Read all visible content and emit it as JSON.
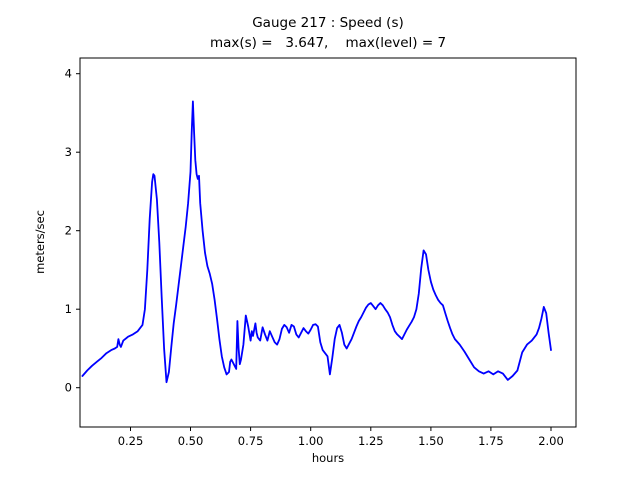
{
  "figure": {
    "background": "#ffffff"
  },
  "chart_data": {
    "type": "line",
    "title": "Gauge 217 : Speed (s)",
    "subtitle": "max(s) =   3.647,    max(level) = 7",
    "xlabel": "hours",
    "ylabel": "meters/sec",
    "max_s": 3.647,
    "max_level": 7,
    "line_color": "#0000ff",
    "axis_color": "#000000",
    "grid": false,
    "legend": "none",
    "xlim": [
      0.04,
      2.104
    ],
    "ylim": [
      -0.5,
      4.2
    ],
    "xticks": [
      0.25,
      0.5,
      0.75,
      1.0,
      1.25,
      1.5,
      1.75,
      2.0
    ],
    "xtick_labels": [
      "0.25",
      "0.50",
      "0.75",
      "1.00",
      "1.25",
      "1.50",
      "1.75",
      "2.00"
    ],
    "yticks": [
      0,
      1,
      2,
      3,
      4
    ],
    "ytick_labels": [
      "0",
      "1",
      "2",
      "3",
      "4"
    ],
    "points": [
      [
        0.05,
        0.15
      ],
      [
        0.07,
        0.22
      ],
      [
        0.09,
        0.28
      ],
      [
        0.11,
        0.33
      ],
      [
        0.13,
        0.38
      ],
      [
        0.15,
        0.44
      ],
      [
        0.17,
        0.48
      ],
      [
        0.185,
        0.5
      ],
      [
        0.195,
        0.52
      ],
      [
        0.2,
        0.62
      ],
      [
        0.205,
        0.55
      ],
      [
        0.21,
        0.52
      ],
      [
        0.22,
        0.6
      ],
      [
        0.24,
        0.65
      ],
      [
        0.26,
        0.68
      ],
      [
        0.28,
        0.72
      ],
      [
        0.3,
        0.8
      ],
      [
        0.31,
        1.0
      ],
      [
        0.32,
        1.5
      ],
      [
        0.33,
        2.15
      ],
      [
        0.34,
        2.62
      ],
      [
        0.345,
        2.72
      ],
      [
        0.35,
        2.7
      ],
      [
        0.36,
        2.4
      ],
      [
        0.37,
        1.85
      ],
      [
        0.38,
        1.15
      ],
      [
        0.39,
        0.5
      ],
      [
        0.4,
        0.07
      ],
      [
        0.41,
        0.2
      ],
      [
        0.42,
        0.52
      ],
      [
        0.43,
        0.82
      ],
      [
        0.44,
        1.05
      ],
      [
        0.45,
        1.3
      ],
      [
        0.46,
        1.55
      ],
      [
        0.47,
        1.8
      ],
      [
        0.48,
        2.05
      ],
      [
        0.49,
        2.35
      ],
      [
        0.5,
        2.75
      ],
      [
        0.505,
        3.25
      ],
      [
        0.51,
        3.647
      ],
      [
        0.515,
        3.25
      ],
      [
        0.52,
        2.9
      ],
      [
        0.525,
        2.72
      ],
      [
        0.53,
        2.66
      ],
      [
        0.535,
        2.7
      ],
      [
        0.54,
        2.35
      ],
      [
        0.55,
        2.0
      ],
      [
        0.56,
        1.72
      ],
      [
        0.57,
        1.55
      ],
      [
        0.58,
        1.45
      ],
      [
        0.59,
        1.32
      ],
      [
        0.6,
        1.12
      ],
      [
        0.61,
        0.88
      ],
      [
        0.62,
        0.62
      ],
      [
        0.63,
        0.4
      ],
      [
        0.64,
        0.26
      ],
      [
        0.65,
        0.17
      ],
      [
        0.66,
        0.2
      ],
      [
        0.665,
        0.33
      ],
      [
        0.67,
        0.36
      ],
      [
        0.68,
        0.3
      ],
      [
        0.69,
        0.24
      ],
      [
        0.695,
        0.85
      ],
      [
        0.7,
        0.5
      ],
      [
        0.705,
        0.3
      ],
      [
        0.71,
        0.36
      ],
      [
        0.72,
        0.55
      ],
      [
        0.73,
        0.92
      ],
      [
        0.74,
        0.78
      ],
      [
        0.75,
        0.6
      ],
      [
        0.755,
        0.72
      ],
      [
        0.76,
        0.66
      ],
      [
        0.77,
        0.82
      ],
      [
        0.775,
        0.7
      ],
      [
        0.78,
        0.64
      ],
      [
        0.79,
        0.6
      ],
      [
        0.8,
        0.77
      ],
      [
        0.81,
        0.68
      ],
      [
        0.82,
        0.6
      ],
      [
        0.83,
        0.72
      ],
      [
        0.84,
        0.65
      ],
      [
        0.85,
        0.58
      ],
      [
        0.86,
        0.55
      ],
      [
        0.87,
        0.62
      ],
      [
        0.88,
        0.75
      ],
      [
        0.89,
        0.8
      ],
      [
        0.9,
        0.77
      ],
      [
        0.91,
        0.7
      ],
      [
        0.92,
        0.8
      ],
      [
        0.93,
        0.78
      ],
      [
        0.94,
        0.68
      ],
      [
        0.95,
        0.64
      ],
      [
        0.96,
        0.7
      ],
      [
        0.97,
        0.76
      ],
      [
        0.98,
        0.72
      ],
      [
        0.99,
        0.69
      ],
      [
        1.0,
        0.74
      ],
      [
        1.01,
        0.8
      ],
      [
        1.02,
        0.81
      ],
      [
        1.03,
        0.78
      ],
      [
        1.04,
        0.58
      ],
      [
        1.05,
        0.48
      ],
      [
        1.06,
        0.44
      ],
      [
        1.07,
        0.4
      ],
      [
        1.08,
        0.17
      ],
      [
        1.09,
        0.38
      ],
      [
        1.1,
        0.62
      ],
      [
        1.11,
        0.76
      ],
      [
        1.12,
        0.8
      ],
      [
        1.13,
        0.7
      ],
      [
        1.14,
        0.55
      ],
      [
        1.15,
        0.5
      ],
      [
        1.16,
        0.56
      ],
      [
        1.17,
        0.62
      ],
      [
        1.18,
        0.7
      ],
      [
        1.19,
        0.78
      ],
      [
        1.2,
        0.85
      ],
      [
        1.21,
        0.9
      ],
      [
        1.22,
        0.96
      ],
      [
        1.23,
        1.02
      ],
      [
        1.24,
        1.06
      ],
      [
        1.25,
        1.08
      ],
      [
        1.26,
        1.04
      ],
      [
        1.27,
        1.0
      ],
      [
        1.28,
        1.05
      ],
      [
        1.29,
        1.08
      ],
      [
        1.3,
        1.05
      ],
      [
        1.31,
        1.0
      ],
      [
        1.32,
        0.96
      ],
      [
        1.33,
        0.9
      ],
      [
        1.34,
        0.8
      ],
      [
        1.35,
        0.72
      ],
      [
        1.36,
        0.68
      ],
      [
        1.37,
        0.65
      ],
      [
        1.38,
        0.62
      ],
      [
        1.39,
        0.68
      ],
      [
        1.4,
        0.74
      ],
      [
        1.41,
        0.79
      ],
      [
        1.42,
        0.84
      ],
      [
        1.43,
        0.9
      ],
      [
        1.44,
        1.0
      ],
      [
        1.45,
        1.2
      ],
      [
        1.46,
        1.52
      ],
      [
        1.47,
        1.75
      ],
      [
        1.48,
        1.7
      ],
      [
        1.49,
        1.5
      ],
      [
        1.5,
        1.35
      ],
      [
        1.51,
        1.25
      ],
      [
        1.52,
        1.18
      ],
      [
        1.53,
        1.12
      ],
      [
        1.54,
        1.08
      ],
      [
        1.55,
        1.05
      ],
      [
        1.56,
        0.95
      ],
      [
        1.57,
        0.85
      ],
      [
        1.58,
        0.76
      ],
      [
        1.59,
        0.68
      ],
      [
        1.6,
        0.62
      ],
      [
        1.62,
        0.55
      ],
      [
        1.64,
        0.46
      ],
      [
        1.66,
        0.36
      ],
      [
        1.68,
        0.26
      ],
      [
        1.7,
        0.21
      ],
      [
        1.72,
        0.18
      ],
      [
        1.74,
        0.21
      ],
      [
        1.76,
        0.17
      ],
      [
        1.78,
        0.21
      ],
      [
        1.8,
        0.18
      ],
      [
        1.82,
        0.1
      ],
      [
        1.84,
        0.15
      ],
      [
        1.86,
        0.22
      ],
      [
        1.88,
        0.45
      ],
      [
        1.9,
        0.55
      ],
      [
        1.92,
        0.6
      ],
      [
        1.94,
        0.68
      ],
      [
        1.95,
        0.76
      ],
      [
        1.96,
        0.88
      ],
      [
        1.97,
        1.03
      ],
      [
        1.98,
        0.95
      ],
      [
        1.99,
        0.7
      ],
      [
        2.0,
        0.48
      ]
    ]
  }
}
